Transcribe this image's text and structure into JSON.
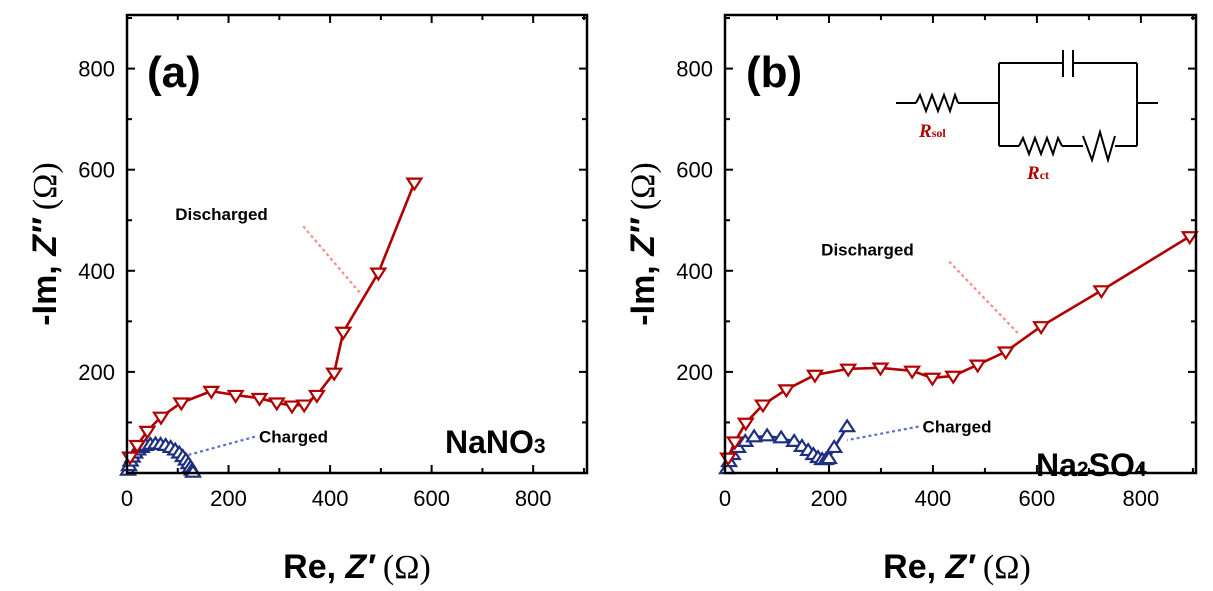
{
  "chart_data": [
    {
      "type": "line",
      "panel_label": "(a)",
      "electrolyte": {
        "main": "NaNO",
        "sub": "3"
      },
      "xlabel": {
        "prefix": "Re, ",
        "var": "Z′",
        "unit": " (Ω)"
      },
      "ylabel": {
        "prefix": "-Im, ",
        "var": "Z″",
        "unit": " (Ω)"
      },
      "xlim": [
        0,
        906
      ],
      "ylim": [
        0,
        906
      ],
      "xticks": [
        0,
        200,
        400,
        600,
        800
      ],
      "yticks": [
        200,
        400,
        600,
        800
      ],
      "grid": false,
      "series": [
        {
          "name": "Discharged",
          "color": "#b00000",
          "marker": "triangle-down",
          "x": [
            6,
            20,
            40,
            67,
            107,
            166,
            214,
            261,
            295,
            325,
            349,
            374,
            408,
            426,
            495,
            566
          ],
          "y": [
            32,
            55,
            83,
            111,
            139,
            162,
            154,
            148,
            139,
            133,
            135,
            154,
            198,
            279,
            396,
            574
          ]
        },
        {
          "name": "Charged",
          "color": "#1f2f80",
          "marker": "triangle-up",
          "x": [
            2,
            4,
            7,
            11,
            16,
            22,
            29,
            37,
            46,
            56,
            66,
            76,
            86,
            95,
            103,
            110,
            116,
            121,
            125,
            128,
            130
          ],
          "y": [
            5,
            14,
            23,
            31,
            39,
            45,
            50,
            54,
            56,
            57,
            56,
            54,
            50,
            45,
            39,
            32,
            25,
            18,
            11,
            5,
            1
          ]
        }
      ],
      "annotations": [
        {
          "text": "Discharged",
          "series": "Discharged",
          "color": "#ff8a8a",
          "label_at": [
            95,
            500
          ],
          "points_to": [
            460,
            355
          ]
        },
        {
          "text": "Charged",
          "series": "Charged",
          "color": "#6070c8",
          "label_at": [
            260,
            60
          ],
          "points_to": [
            100,
            30
          ]
        }
      ]
    },
    {
      "type": "line",
      "panel_label": "(b)",
      "electrolyte": {
        "main": "Na",
        "sub1": "2",
        "mid": "SO",
        "sub2": "4"
      },
      "xlabel": {
        "prefix": "Re, ",
        "var": "Z′",
        "unit": " (Ω)"
      },
      "ylabel": {
        "prefix": "-Im, ",
        "var": "Z″",
        "unit": " (Ω)"
      },
      "xlim": [
        0,
        906
      ],
      "ylim": [
        0,
        906
      ],
      "xticks": [
        0,
        200,
        400,
        600,
        800
      ],
      "yticks": [
        200,
        400,
        600,
        800
      ],
      "grid": false,
      "series": [
        {
          "name": "Discharged",
          "color": "#b00000",
          "marker": "triangle-down",
          "x": [
            6,
            19,
            40,
            73,
            118,
            173,
            237,
            299,
            360,
            399,
            439,
            486,
            540,
            608,
            724,
            894
          ],
          "y": [
            30,
            62,
            99,
            135,
            165,
            194,
            206,
            208,
            202,
            188,
            192,
            214,
            240,
            290,
            361,
            468
          ]
        },
        {
          "name": "Charged",
          "color": "#1f2f80",
          "marker": "triangle-up",
          "x": [
            4,
            8,
            15,
            25,
            39,
            56,
            81,
            108,
            133,
            148,
            160,
            170,
            179,
            187,
            194,
            200,
            210,
            235
          ],
          "y": [
            8,
            22,
            36,
            50,
            62,
            71,
            73,
            69,
            62,
            52,
            44,
            36,
            30,
            26,
            26,
            28,
            50,
            91
          ]
        }
      ],
      "annotations": [
        {
          "text": "Discharged",
          "series": "Discharged",
          "color": "#ff8a8a",
          "label_at": [
            185,
            430
          ],
          "points_to": [
            565,
            275
          ]
        },
        {
          "text": "Charged",
          "series": "Charged",
          "color": "#6070c8",
          "label_at": [
            380,
            80
          ],
          "points_to": [
            235,
            65
          ]
        }
      ],
      "inset_circuit": {
        "description": "Randles equivalent circuit",
        "labels": [
          {
            "name": "R",
            "sub": "sol",
            "color": "#b00000"
          },
          {
            "name": "R",
            "sub": "ct",
            "color": "#b00000"
          }
        ],
        "elements": [
          "resistor-Rsol",
          "capacitor",
          "resistor-Rct",
          "warburg"
        ]
      }
    }
  ]
}
